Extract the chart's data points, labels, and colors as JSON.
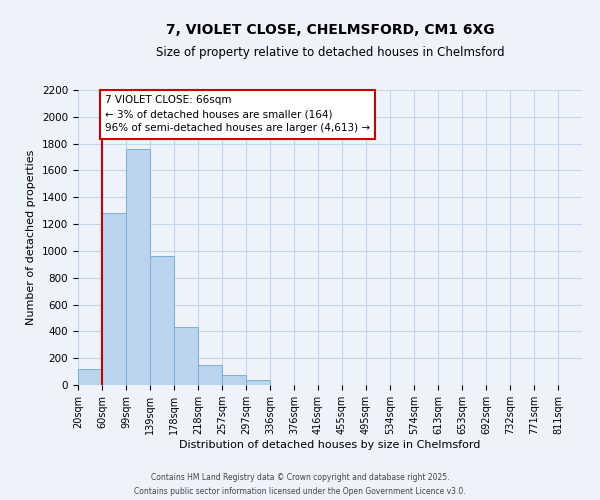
{
  "title": "7, VIOLET CLOSE, CHELMSFORD, CM1 6XG",
  "subtitle": "Size of property relative to detached houses in Chelmsford",
  "xlabel": "Distribution of detached houses by size in Chelmsford",
  "ylabel": "Number of detached properties",
  "bar_values": [
    120,
    1280,
    1760,
    960,
    430,
    150,
    75,
    35,
    0,
    0,
    0,
    0,
    0,
    0,
    0,
    0,
    0,
    0,
    0,
    0,
    0
  ],
  "bin_labels": [
    "20sqm",
    "60sqm",
    "99sqm",
    "139sqm",
    "178sqm",
    "218sqm",
    "257sqm",
    "297sqm",
    "336sqm",
    "376sqm",
    "416sqm",
    "455sqm",
    "495sqm",
    "534sqm",
    "574sqm",
    "613sqm",
    "653sqm",
    "692sqm",
    "732sqm",
    "771sqm",
    "811sqm"
  ],
  "bar_color": "#bad4ed",
  "bar_edge_color": "#7aafd4",
  "grid_color": "#c5d5e8",
  "background_color": "#eef2fa",
  "vline_x_bar": 1,
  "vline_color": "#cc0000",
  "annotation_text": "7 VIOLET CLOSE: 66sqm\n← 3% of detached houses are smaller (164)\n96% of semi-detached houses are larger (4,613) →",
  "annotation_box_color": "#ffffff",
  "annotation_box_edge": "#cc0000",
  "ylim": [
    0,
    2200
  ],
  "yticks": [
    0,
    200,
    400,
    600,
    800,
    1000,
    1200,
    1400,
    1600,
    1800,
    2000,
    2200
  ],
  "footer1": "Contains HM Land Registry data © Crown copyright and database right 2025.",
  "footer2": "Contains public sector information licensed under the Open Government Licence v3.0."
}
